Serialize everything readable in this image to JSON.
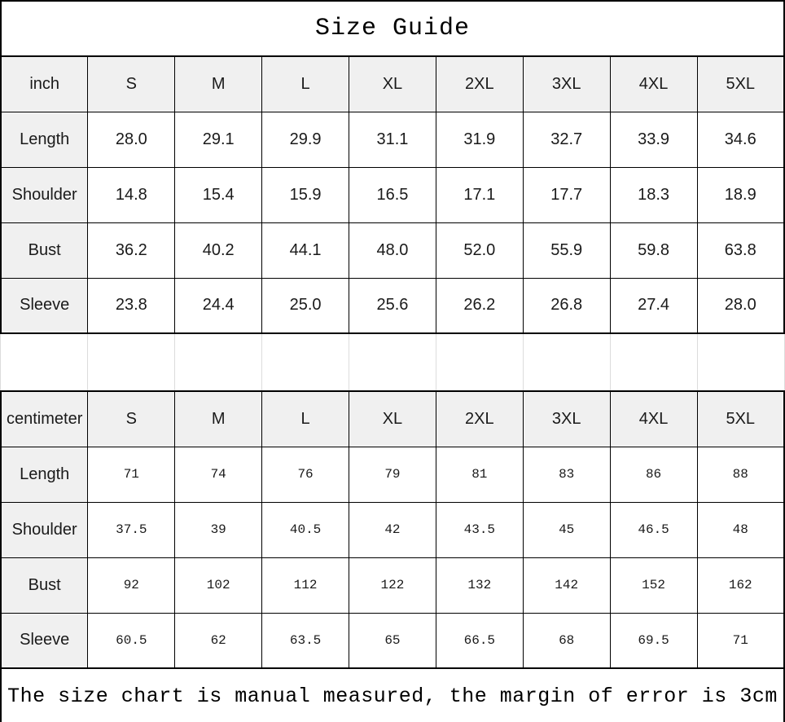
{
  "title": "Size Guide",
  "footer": "The size chart is manual measured, the margin of error is 3cm",
  "sizes": [
    "S",
    "M",
    "L",
    "XL",
    "2XL",
    "3XL",
    "4XL",
    "5XL"
  ],
  "inch_table": {
    "unit_label": "inch",
    "rows": [
      {
        "label": "Length",
        "values": [
          "28.0",
          "29.1",
          "29.9",
          "31.1",
          "31.9",
          "32.7",
          "33.9",
          "34.6"
        ]
      },
      {
        "label": "Shoulder",
        "values": [
          "14.8",
          "15.4",
          "15.9",
          "16.5",
          "17.1",
          "17.7",
          "18.3",
          "18.9"
        ]
      },
      {
        "label": "Bust",
        "values": [
          "36.2",
          "40.2",
          "44.1",
          "48.0",
          "52.0",
          "55.9",
          "59.8",
          "63.8"
        ]
      },
      {
        "label": "Sleeve",
        "values": [
          "23.8",
          "24.4",
          "25.0",
          "25.6",
          "26.2",
          "26.8",
          "27.4",
          "28.0"
        ]
      }
    ]
  },
  "cm_table": {
    "unit_label": "centimeter",
    "rows": [
      {
        "label": "Length",
        "values": [
          "71",
          "74",
          "76",
          "79",
          "81",
          "83",
          "86",
          "88"
        ]
      },
      {
        "label": "Shoulder",
        "values": [
          "37.5",
          "39",
          "40.5",
          "42",
          "43.5",
          "45",
          "46.5",
          "48"
        ]
      },
      {
        "label": "Bust",
        "values": [
          "92",
          "102",
          "112",
          "122",
          "132",
          "142",
          "152",
          "162"
        ]
      },
      {
        "label": "Sleeve",
        "values": [
          "60.5",
          "62",
          "63.5",
          "65",
          "66.5",
          "68",
          "69.5",
          "71"
        ]
      }
    ]
  },
  "colors": {
    "header_bg": "#f0f0f0",
    "table_border": "#000000",
    "gridline": "#dcdcdc",
    "text": "#1a1a1a"
  }
}
